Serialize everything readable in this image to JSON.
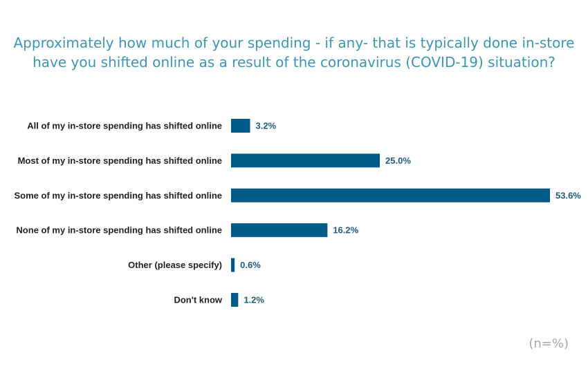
{
  "chart_data": {
    "type": "bar",
    "orientation": "horizontal",
    "title": "Approximately how much of your spending - if any- that is typically done in-store have you shifted online as a result of the coronavirus (COVID-19) situation?",
    "title_lines": [
      "Approximately how much of your spending - if any- that is typically done in-store",
      "have you shifted online as a result of the coronavirus (COVID-19) situation?"
    ],
    "categories": [
      "All of my in-store spending has shifted online",
      "Most of my in-store spending has shifted online",
      "Some of my in-store spending has shifted online",
      "None of my in-store spending has shifted online",
      "Other (please specify)",
      "Don't know"
    ],
    "values": [
      3.2,
      25.0,
      53.6,
      16.2,
      0.6,
      1.2
    ],
    "value_labels": [
      "3.2%",
      "25.0%",
      "53.6%",
      "16.2%",
      "0.6%",
      "1.2%"
    ],
    "xlabel": "",
    "ylabel": "",
    "xlim": [
      0,
      53.6
    ],
    "grid": false,
    "legend": "none",
    "footnote": "(n=%)",
    "colors": {
      "bar": "#005a87",
      "title": "#3a96b8",
      "value_label": "#1f5a84",
      "category_label": "#1f1f1f",
      "footnote": "#a6a6a6"
    }
  }
}
